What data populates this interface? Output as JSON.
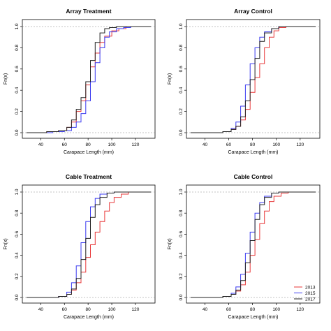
{
  "legend": {
    "position": "bottom-right of Cable Control panel",
    "entries": [
      {
        "name": "2013",
        "color": "#e8393a"
      },
      {
        "name": "2015",
        "color": "#3b3bf0"
      },
      {
        "name": "2017",
        "color": "#222222"
      }
    ]
  },
  "chart_data": [
    {
      "type": "line",
      "step": true,
      "title": "Array Treatment",
      "xlabel": "Carapace Length (mm)",
      "ylabel": "Fn(x)",
      "xlim": [
        28,
        133
      ],
      "ylim": [
        0,
        1
      ],
      "xticks": [
        "40",
        "60",
        "80",
        "100",
        "120"
      ],
      "yticks": [
        "0.0",
        "0.2",
        "0.4",
        "0.6",
        "0.8",
        "1.0"
      ],
      "series": [
        {
          "name": "2013",
          "color": "#e8393a",
          "x": [
            28,
            45,
            55,
            62,
            66,
            70,
            74,
            78,
            82,
            86,
            90,
            94,
            100,
            106,
            112,
            133
          ],
          "y": [
            0,
            0.01,
            0.02,
            0.05,
            0.1,
            0.2,
            0.3,
            0.45,
            0.62,
            0.75,
            0.85,
            0.91,
            0.96,
            0.98,
            1.0,
            1.0
          ]
        },
        {
          "name": "2015",
          "color": "#3b3bf0",
          "x": [
            28,
            50,
            60,
            66,
            70,
            74,
            78,
            82,
            86,
            90,
            94,
            98,
            104,
            110,
            116,
            133
          ],
          "y": [
            0,
            0.01,
            0.02,
            0.05,
            0.1,
            0.18,
            0.3,
            0.48,
            0.66,
            0.8,
            0.9,
            0.95,
            0.98,
            0.99,
            1.0,
            1.0
          ]
        },
        {
          "name": "2017",
          "color": "#222222",
          "x": [
            28,
            45,
            55,
            62,
            66,
            70,
            74,
            78,
            82,
            86,
            90,
            94,
            98,
            104,
            133
          ],
          "y": [
            0,
            0.01,
            0.02,
            0.05,
            0.12,
            0.22,
            0.33,
            0.48,
            0.68,
            0.85,
            0.94,
            0.98,
            0.99,
            1.0,
            1.0
          ]
        }
      ]
    },
    {
      "type": "line",
      "step": true,
      "title": "Array Control",
      "xlabel": "Carapace Length (mm)",
      "ylabel": "Fn(x)",
      "xlim": [
        28,
        133
      ],
      "ylim": [
        0,
        1
      ],
      "xticks": [
        "40",
        "60",
        "80",
        "100",
        "120"
      ],
      "yticks": [
        "0.0",
        "0.2",
        "0.4",
        "0.6",
        "0.8",
        "1.0"
      ],
      "series": [
        {
          "name": "2013",
          "color": "#e8393a",
          "x": [
            28,
            55,
            62,
            66,
            70,
            74,
            78,
            82,
            86,
            90,
            94,
            98,
            102,
            108,
            133
          ],
          "y": [
            0,
            0.01,
            0.03,
            0.06,
            0.12,
            0.22,
            0.38,
            0.52,
            0.65,
            0.8,
            0.9,
            0.96,
            0.99,
            1.0,
            1.0
          ]
        },
        {
          "name": "2015",
          "color": "#3b3bf0",
          "x": [
            28,
            55,
            62,
            66,
            70,
            74,
            78,
            82,
            86,
            90,
            96,
            102,
            133
          ],
          "y": [
            0,
            0.01,
            0.04,
            0.1,
            0.25,
            0.45,
            0.65,
            0.8,
            0.9,
            0.95,
            0.98,
            1.0,
            1.0
          ]
        },
        {
          "name": "2017",
          "color": "#222222",
          "x": [
            28,
            55,
            62,
            66,
            70,
            74,
            78,
            82,
            86,
            90,
            96,
            102,
            133
          ],
          "y": [
            0,
            0.01,
            0.03,
            0.06,
            0.15,
            0.3,
            0.5,
            0.7,
            0.86,
            0.94,
            0.98,
            1.0,
            1.0
          ]
        }
      ]
    },
    {
      "type": "line",
      "step": true,
      "title": "Cable Treatment",
      "xlabel": "Carapace Length (mm)",
      "ylabel": "Fn(x)",
      "xlim": [
        28,
        133
      ],
      "ylim": [
        0,
        1
      ],
      "xticks": [
        "40",
        "60",
        "80",
        "100",
        "120"
      ],
      "yticks": [
        "0.0",
        "0.2",
        "0.4",
        "0.6",
        "0.8",
        "1.0"
      ],
      "series": [
        {
          "name": "2013",
          "color": "#e8393a",
          "x": [
            28,
            55,
            62,
            66,
            70,
            74,
            78,
            82,
            86,
            90,
            94,
            98,
            102,
            108,
            114,
            133
          ],
          "y": [
            0,
            0.01,
            0.03,
            0.07,
            0.14,
            0.24,
            0.38,
            0.5,
            0.62,
            0.72,
            0.82,
            0.9,
            0.95,
            0.98,
            1.0,
            1.0
          ]
        },
        {
          "name": "2015",
          "color": "#3b3bf0",
          "x": [
            28,
            55,
            62,
            66,
            70,
            74,
            78,
            82,
            86,
            90,
            96,
            102,
            133
          ],
          "y": [
            0,
            0.01,
            0.05,
            0.14,
            0.3,
            0.52,
            0.72,
            0.86,
            0.94,
            0.98,
            0.99,
            1.0,
            1.0
          ]
        },
        {
          "name": "2017",
          "color": "#222222",
          "x": [
            28,
            55,
            62,
            66,
            70,
            74,
            78,
            82,
            86,
            90,
            96,
            102,
            133
          ],
          "y": [
            0,
            0.01,
            0.03,
            0.08,
            0.18,
            0.36,
            0.56,
            0.76,
            0.88,
            0.95,
            0.99,
            1.0,
            1.0
          ]
        }
      ]
    },
    {
      "type": "line",
      "step": true,
      "title": "Cable Control",
      "xlabel": "Carapace Length (mm)",
      "ylabel": "Fn(x)",
      "xlim": [
        28,
        133
      ],
      "ylim": [
        0,
        1
      ],
      "xticks": [
        "40",
        "60",
        "80",
        "100",
        "120"
      ],
      "yticks": [
        "0.0",
        "0.2",
        "0.4",
        "0.6",
        "0.8",
        "1.0"
      ],
      "series": [
        {
          "name": "2013",
          "color": "#e8393a",
          "x": [
            28,
            55,
            62,
            66,
            70,
            74,
            78,
            82,
            86,
            90,
            94,
            98,
            104,
            110,
            133
          ],
          "y": [
            0,
            0.01,
            0.03,
            0.06,
            0.12,
            0.24,
            0.4,
            0.55,
            0.7,
            0.82,
            0.91,
            0.96,
            0.99,
            1.0,
            1.0
          ]
        },
        {
          "name": "2015",
          "color": "#3b3bf0",
          "x": [
            28,
            55,
            62,
            66,
            70,
            74,
            78,
            82,
            86,
            90,
            96,
            102,
            133
          ],
          "y": [
            0,
            0.01,
            0.04,
            0.1,
            0.22,
            0.42,
            0.62,
            0.8,
            0.9,
            0.96,
            0.99,
            1.0,
            1.0
          ]
        },
        {
          "name": "2017",
          "color": "#222222",
          "x": [
            28,
            55,
            62,
            66,
            70,
            74,
            78,
            82,
            86,
            90,
            96,
            102,
            133
          ],
          "y": [
            0,
            0.01,
            0.03,
            0.07,
            0.16,
            0.33,
            0.54,
            0.74,
            0.88,
            0.95,
            0.99,
            1.0,
            1.0
          ]
        }
      ]
    }
  ]
}
